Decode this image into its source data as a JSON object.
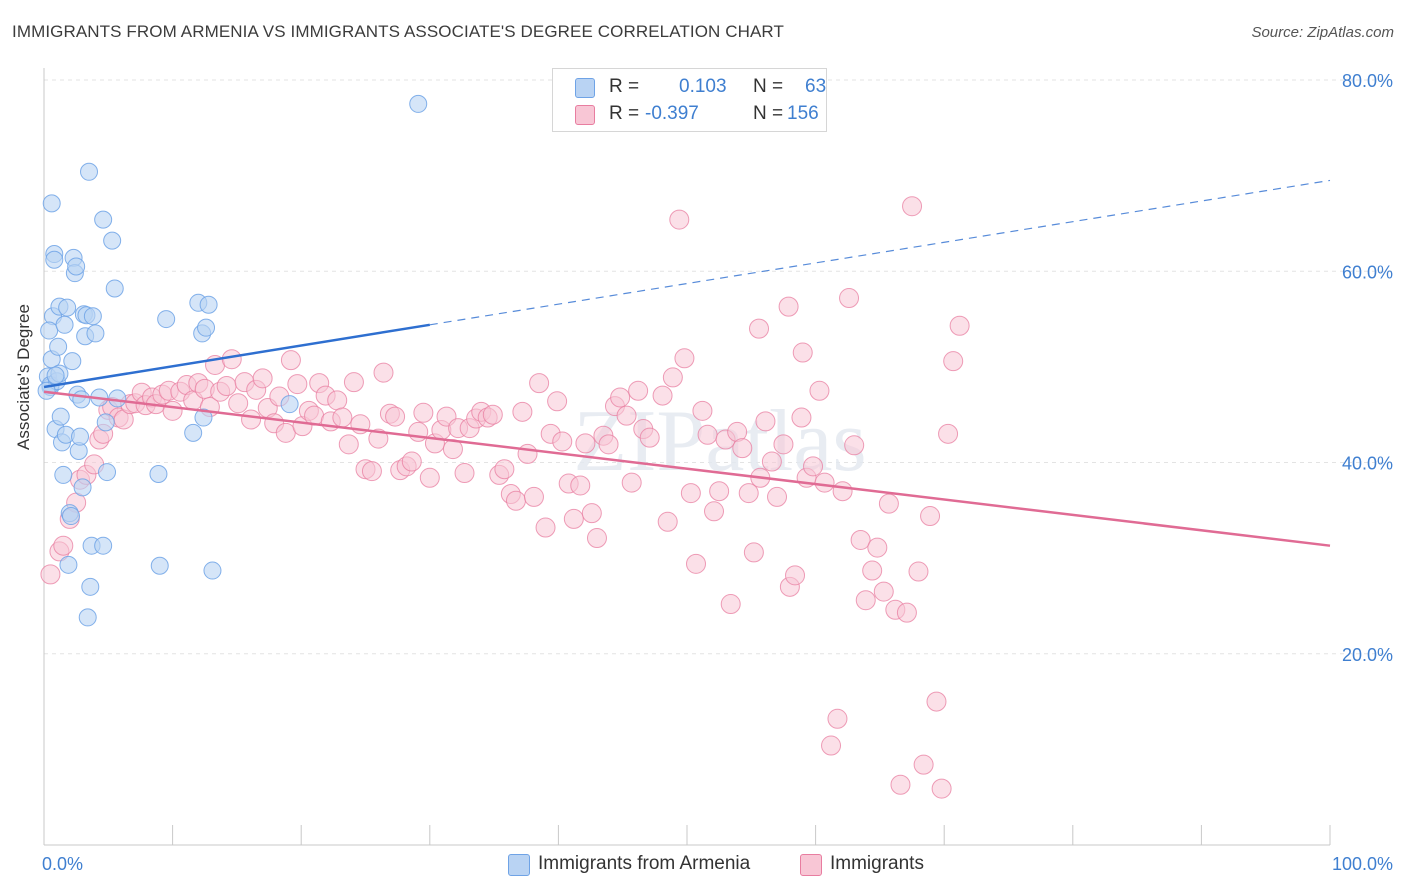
{
  "header": {
    "title": "IMMIGRANTS FROM ARMENIA VS IMMIGRANTS ASSOCIATE'S DEGREE CORRELATION CHART",
    "source": "Source: ZipAtlas.com"
  },
  "legend": {
    "rows": [
      {
        "r_label": "R =",
        "r_value": "0.103",
        "n_label": "N =",
        "n_value": "63",
        "color": "#a9c8f0"
      },
      {
        "r_label": "R =",
        "r_value": "-0.397",
        "n_label": "N =",
        "n_value": "156",
        "color": "#f5b7c9"
      }
    ]
  },
  "bottom_legend": {
    "armenia": {
      "label": "Immigrants from Armenia",
      "color": "#a9c8f0"
    },
    "immigrants": {
      "label": "Immigrants",
      "color": "#f5b7c9"
    }
  },
  "watermark": "ZIPatlas",
  "chart_data": {
    "type": "scatter",
    "xlabel": "",
    "ylabel": "Associate's Degree",
    "xlim": [
      0,
      100
    ],
    "ylim": [
      0,
      80
    ],
    "x_tick_labels": [
      "0.0%",
      "100.0%"
    ],
    "y_ticks": [
      20,
      40,
      60,
      80
    ],
    "y_tick_labels": [
      "20.0%",
      "40.0%",
      "60.0%",
      "80.0%"
    ],
    "grid": true,
    "legend_position": "top-center",
    "series": [
      {
        "name": "Immigrants from Armenia",
        "color": "#6fa3e6",
        "fill": "#b9d3f3",
        "trend": {
          "x0": 0,
          "y0": 47.9,
          "x1": 30,
          "y1": 54.4,
          "dashed_to_x": 100,
          "dashed_to_y": 69.5,
          "color": "#2e6fd0"
        },
        "points": [
          [
            0.3,
            49.0
          ],
          [
            0.5,
            47.9
          ],
          [
            0.5,
            48.1
          ],
          [
            0.6,
            67.1
          ],
          [
            0.7,
            55.3
          ],
          [
            0.8,
            61.8
          ],
          [
            0.8,
            61.2
          ],
          [
            0.4,
            53.8
          ],
          [
            0.6,
            50.8
          ],
          [
            0.9,
            43.5
          ],
          [
            1.0,
            48.5
          ],
          [
            1.1,
            52.1
          ],
          [
            1.2,
            49.3
          ],
          [
            1.2,
            56.3
          ],
          [
            1.3,
            44.8
          ],
          [
            1.4,
            42.1
          ],
          [
            1.5,
            38.7
          ],
          [
            1.6,
            54.4
          ],
          [
            1.7,
            42.9
          ],
          [
            1.8,
            56.2
          ],
          [
            1.9,
            29.3
          ],
          [
            2.0,
            34.7
          ],
          [
            2.1,
            34.4
          ],
          [
            2.2,
            50.6
          ],
          [
            2.3,
            61.4
          ],
          [
            2.4,
            59.8
          ],
          [
            2.5,
            60.5
          ],
          [
            2.6,
            47.1
          ],
          [
            2.7,
            41.2
          ],
          [
            2.8,
            42.7
          ],
          [
            2.9,
            46.6
          ],
          [
            3.0,
            37.4
          ],
          [
            3.1,
            55.5
          ],
          [
            3.2,
            53.2
          ],
          [
            3.3,
            55.4
          ],
          [
            3.4,
            23.8
          ],
          [
            3.5,
            70.4
          ],
          [
            3.6,
            27.0
          ],
          [
            3.7,
            31.3
          ],
          [
            3.8,
            55.3
          ],
          [
            4.0,
            53.5
          ],
          [
            4.3,
            46.8
          ],
          [
            4.6,
            65.4
          ],
          [
            4.8,
            44.2
          ],
          [
            4.9,
            39.0
          ],
          [
            4.6,
            31.3
          ],
          [
            5.3,
            63.2
          ],
          [
            5.5,
            58.2
          ],
          [
            5.7,
            46.7
          ],
          [
            8.9,
            38.8
          ],
          [
            9.0,
            29.2
          ],
          [
            9.5,
            55.0
          ],
          [
            11.6,
            43.1
          ],
          [
            12.0,
            56.7
          ],
          [
            12.3,
            53.5
          ],
          [
            12.4,
            44.7
          ],
          [
            12.6,
            54.1
          ],
          [
            12.8,
            56.5
          ],
          [
            13.1,
            28.7
          ],
          [
            19.1,
            46.1
          ],
          [
            29.1,
            77.5
          ],
          [
            0.2,
            47.5
          ],
          [
            0.9,
            49.1
          ]
        ]
      },
      {
        "name": "Immigrants",
        "color": "#e87da0",
        "fill": "#f8c6d5",
        "trend": {
          "x0": 0,
          "y0": 47.4,
          "x1": 100,
          "y1": 31.3,
          "color": "#e06b94"
        },
        "points": [
          [
            0.5,
            28.3
          ],
          [
            1.2,
            30.7
          ],
          [
            1.5,
            31.3
          ],
          [
            2.0,
            34.1
          ],
          [
            2.5,
            35.8
          ],
          [
            2.8,
            38.2
          ],
          [
            3.3,
            38.7
          ],
          [
            3.9,
            39.8
          ],
          [
            4.3,
            42.4
          ],
          [
            4.6,
            43.0
          ],
          [
            5.0,
            45.5
          ],
          [
            5.3,
            45.8
          ],
          [
            5.8,
            44.7
          ],
          [
            6.2,
            44.5
          ],
          [
            6.7,
            46.1
          ],
          [
            7.1,
            46.2
          ],
          [
            7.6,
            47.3
          ],
          [
            7.9,
            46.0
          ],
          [
            8.4,
            46.8
          ],
          [
            8.7,
            46.1
          ],
          [
            9.2,
            47.1
          ],
          [
            9.7,
            47.5
          ],
          [
            10.0,
            45.4
          ],
          [
            10.6,
            47.4
          ],
          [
            11.1,
            48.1
          ],
          [
            11.6,
            46.5
          ],
          [
            12.0,
            48.3
          ],
          [
            12.5,
            47.7
          ],
          [
            12.9,
            45.8
          ],
          [
            13.3,
            50.2
          ],
          [
            13.7,
            47.4
          ],
          [
            14.2,
            48.0
          ],
          [
            14.6,
            50.8
          ],
          [
            15.1,
            46.2
          ],
          [
            15.6,
            48.4
          ],
          [
            16.1,
            44.5
          ],
          [
            16.5,
            47.6
          ],
          [
            17.0,
            48.8
          ],
          [
            17.4,
            45.7
          ],
          [
            17.9,
            44.1
          ],
          [
            18.3,
            46.9
          ],
          [
            18.8,
            43.1
          ],
          [
            19.2,
            50.7
          ],
          [
            19.7,
            48.2
          ],
          [
            20.1,
            43.8
          ],
          [
            20.6,
            45.4
          ],
          [
            21.0,
            44.9
          ],
          [
            21.4,
            48.3
          ],
          [
            21.9,
            47.0
          ],
          [
            22.3,
            44.3
          ],
          [
            22.8,
            46.5
          ],
          [
            23.2,
            44.7
          ],
          [
            23.7,
            41.9
          ],
          [
            24.1,
            48.4
          ],
          [
            24.6,
            44.0
          ],
          [
            25.0,
            39.3
          ],
          [
            25.5,
            39.1
          ],
          [
            26.0,
            42.5
          ],
          [
            26.4,
            49.4
          ],
          [
            26.9,
            45.1
          ],
          [
            27.3,
            44.8
          ],
          [
            27.7,
            39.2
          ],
          [
            28.2,
            39.6
          ],
          [
            28.6,
            40.1
          ],
          [
            29.1,
            43.2
          ],
          [
            29.5,
            45.2
          ],
          [
            30.0,
            38.4
          ],
          [
            30.4,
            42.0
          ],
          [
            30.9,
            43.4
          ],
          [
            31.3,
            44.8
          ],
          [
            31.8,
            41.4
          ],
          [
            32.2,
            43.6
          ],
          [
            32.7,
            38.9
          ],
          [
            33.1,
            43.6
          ],
          [
            33.6,
            44.6
          ],
          [
            34.0,
            45.3
          ],
          [
            34.5,
            44.7
          ],
          [
            34.9,
            45.0
          ],
          [
            35.4,
            38.7
          ],
          [
            35.8,
            39.3
          ],
          [
            36.3,
            36.7
          ],
          [
            36.7,
            36.0
          ],
          [
            37.2,
            45.3
          ],
          [
            37.6,
            40.9
          ],
          [
            38.1,
            36.4
          ],
          [
            38.5,
            48.3
          ],
          [
            39.0,
            33.2
          ],
          [
            39.4,
            43.0
          ],
          [
            39.9,
            46.4
          ],
          [
            40.3,
            42.2
          ],
          [
            40.8,
            37.8
          ],
          [
            41.2,
            34.1
          ],
          [
            41.7,
            37.6
          ],
          [
            42.1,
            42.0
          ],
          [
            42.6,
            34.7
          ],
          [
            43.0,
            32.1
          ],
          [
            43.5,
            42.8
          ],
          [
            43.9,
            41.9
          ],
          [
            44.4,
            45.9
          ],
          [
            44.8,
            46.8
          ],
          [
            45.3,
            44.9
          ],
          [
            45.7,
            37.9
          ],
          [
            46.2,
            47.5
          ],
          [
            46.6,
            43.5
          ],
          [
            47.1,
            42.6
          ],
          [
            48.1,
            47.0
          ],
          [
            48.5,
            33.8
          ],
          [
            48.9,
            48.9
          ],
          [
            49.4,
            65.4
          ],
          [
            49.8,
            50.9
          ],
          [
            50.3,
            36.8
          ],
          [
            50.7,
            29.4
          ],
          [
            51.2,
            45.4
          ],
          [
            51.6,
            42.9
          ],
          [
            52.1,
            34.9
          ],
          [
            52.5,
            37.0
          ],
          [
            53.0,
            42.4
          ],
          [
            53.4,
            25.2
          ],
          [
            53.9,
            43.2
          ],
          [
            54.3,
            41.5
          ],
          [
            54.8,
            36.8
          ],
          [
            55.2,
            30.6
          ],
          [
            55.7,
            38.4
          ],
          [
            56.1,
            44.3
          ],
          [
            56.6,
            40.1
          ],
          [
            57.0,
            36.4
          ],
          [
            57.5,
            41.9
          ],
          [
            58.0,
            27.0
          ],
          [
            58.4,
            28.2
          ],
          [
            58.9,
            44.7
          ],
          [
            59.3,
            38.4
          ],
          [
            59.8,
            39.6
          ],
          [
            60.3,
            47.5
          ],
          [
            60.7,
            37.9
          ],
          [
            61.2,
            10.4
          ],
          [
            61.7,
            13.2
          ],
          [
            62.1,
            37.0
          ],
          [
            62.6,
            57.2
          ],
          [
            63.0,
            41.8
          ],
          [
            63.5,
            31.9
          ],
          [
            63.9,
            25.6
          ],
          [
            64.4,
            28.7
          ],
          [
            64.8,
            31.1
          ],
          [
            65.3,
            26.5
          ],
          [
            65.7,
            35.7
          ],
          [
            66.2,
            24.6
          ],
          [
            66.6,
            6.3
          ],
          [
            67.1,
            24.3
          ],
          [
            67.5,
            66.8
          ],
          [
            68.0,
            28.6
          ],
          [
            68.4,
            8.4
          ],
          [
            68.9,
            34.4
          ],
          [
            69.4,
            15.0
          ],
          [
            69.8,
            5.9
          ],
          [
            70.3,
            43.0
          ],
          [
            70.7,
            50.6
          ],
          [
            71.2,
            54.3
          ],
          [
            55.6,
            54.0
          ],
          [
            57.9,
            56.3
          ],
          [
            59.0,
            51.5
          ]
        ]
      }
    ]
  }
}
